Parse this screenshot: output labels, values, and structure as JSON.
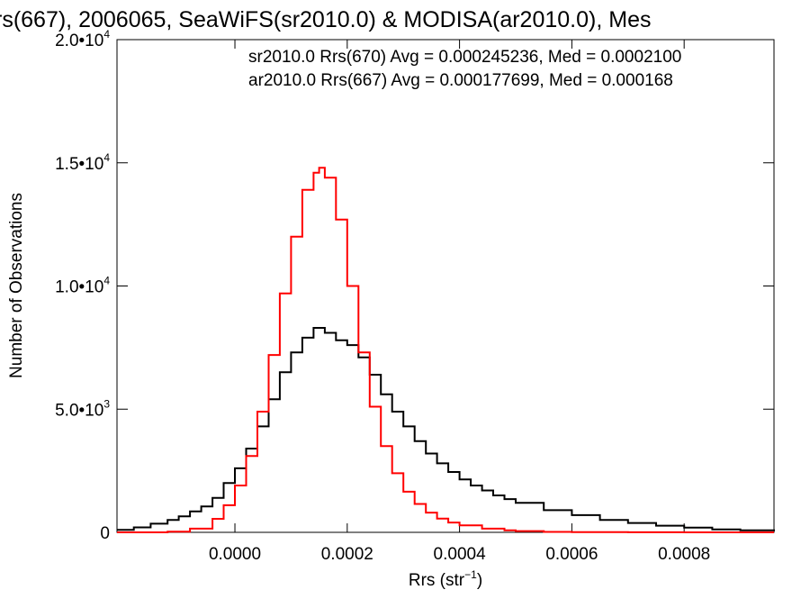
{
  "chart_data": {
    "type": "line",
    "title": "rs(667), 2006065, SeaWiFS(sr2010.0) & MODISA(ar2010.0), Mes",
    "xlabel": "Rrs (str",
    "xlabel_sup": "−1",
    "xlabel_tail": ")",
    "ylabel": "Number of Observations",
    "xlim": [
      -0.00021,
      0.00096
    ],
    "ylim": [
      0,
      20000
    ],
    "grid": false,
    "xticks": [
      {
        "value": 0.0,
        "label": "0.0000"
      },
      {
        "value": 0.0002,
        "label": "0.0002"
      },
      {
        "value": 0.0004,
        "label": "0.0004"
      },
      {
        "value": 0.0006,
        "label": "0.0006"
      },
      {
        "value": 0.0008,
        "label": "0.0008"
      }
    ],
    "yticks": [
      {
        "value": 0,
        "label": "0",
        "sup": ""
      },
      {
        "value": 5000,
        "label": "5.0•10",
        "sup": "3"
      },
      {
        "value": 10000,
        "label": "1.0•10",
        "sup": "4"
      },
      {
        "value": 15000,
        "label": "1.5•10",
        "sup": "4"
      },
      {
        "value": 20000,
        "label": "2.0•10",
        "sup": "4"
      }
    ],
    "legend": [
      {
        "text": "sr2010.0 Rrs(670) Avg = 0.000245236, Med = 0.0002100",
        "color": "#000000"
      },
      {
        "text": "ar2010.0 Rrs(667) Avg = 0.000177699, Med = 0.000168",
        "color": "#ff0000"
      }
    ],
    "series": [
      {
        "color": "#000000",
        "x": [
          -0.00021,
          -0.00018,
          -0.00015,
          -0.00012,
          -0.0001,
          -8e-05,
          -6e-05,
          -4e-05,
          -2e-05,
          0.0,
          2e-05,
          4e-05,
          6e-05,
          8e-05,
          0.0001,
          0.00012,
          0.00014,
          0.00016,
          0.00018,
          0.0002,
          0.00022,
          0.00024,
          0.00026,
          0.00028,
          0.0003,
          0.00032,
          0.00034,
          0.00036,
          0.00038,
          0.0004,
          0.00042,
          0.00044,
          0.00046,
          0.00048,
          0.0005,
          0.00055,
          0.0006,
          0.00065,
          0.0007,
          0.00075,
          0.0008,
          0.00085,
          0.0009,
          0.00096
        ],
        "y": [
          100,
          200,
          350,
          500,
          650,
          850,
          1050,
          1400,
          2000,
          2600,
          3400,
          4300,
          5400,
          6500,
          7300,
          7900,
          8300,
          8100,
          7800,
          7600,
          7100,
          6400,
          5600,
          4900,
          4300,
          3700,
          3200,
          2800,
          2450,
          2150,
          1900,
          1700,
          1500,
          1350,
          1200,
          900,
          700,
          500,
          380,
          270,
          190,
          120,
          80,
          50
        ]
      },
      {
        "color": "#ff0000",
        "x": [
          -0.00021,
          -0.00012,
          -8e-05,
          -4e-05,
          -2e-05,
          0.0,
          2e-05,
          4e-05,
          6e-05,
          8e-05,
          0.0001,
          0.00012,
          0.00014,
          0.00015,
          0.00016,
          0.00018,
          0.0002,
          0.00022,
          0.00024,
          0.00026,
          0.00028,
          0.0003,
          0.00032,
          0.00034,
          0.00036,
          0.00038,
          0.0004,
          0.00044,
          0.00048,
          0.0005,
          0.00055,
          0.0006,
          0.0007,
          0.0008,
          0.00096
        ],
        "y": [
          0,
          30,
          150,
          550,
          1100,
          1900,
          3100,
          4900,
          7200,
          9700,
          12000,
          13900,
          14600,
          14800,
          14400,
          12700,
          10000,
          7300,
          5100,
          3500,
          2400,
          1650,
          1150,
          800,
          560,
          400,
          280,
          150,
          80,
          50,
          20,
          10,
          5,
          0,
          0
        ]
      }
    ]
  }
}
